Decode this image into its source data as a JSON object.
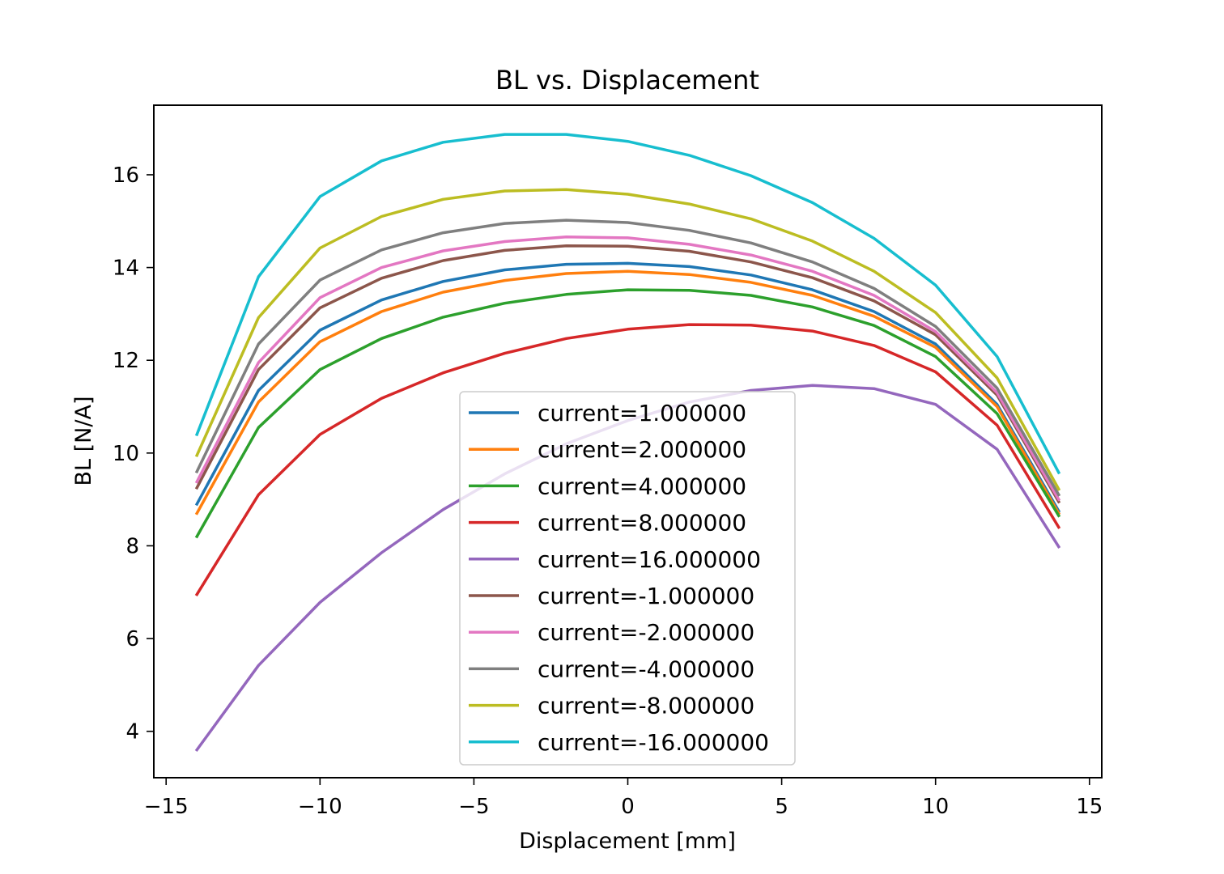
{
  "chart_data": {
    "type": "line",
    "title": "BL vs. Displacement",
    "xlabel": "Displacement [mm]",
    "ylabel": "BL [N/A]",
    "xlim": [
      -15.4,
      15.4
    ],
    "ylim": [
      3.0,
      17.5
    ],
    "xticks": [
      -15,
      -10,
      -5,
      0,
      5,
      10,
      15
    ],
    "xtick_labels": [
      "−15",
      "−10",
      "−5",
      "0",
      "5",
      "10",
      "15"
    ],
    "yticks": [
      4,
      6,
      8,
      10,
      12,
      14,
      16
    ],
    "ytick_labels": [
      "4",
      "6",
      "8",
      "10",
      "12",
      "14",
      "16"
    ],
    "grid": false,
    "legend_position": "lower center",
    "x": [
      -14,
      -12,
      -10,
      -8,
      -6,
      -4,
      -2,
      0,
      2,
      4,
      6,
      8,
      10,
      12,
      14
    ],
    "series": [
      {
        "name": "current=1.000000",
        "color": "#1f77b4",
        "values": [
          8.9,
          11.35,
          12.65,
          13.3,
          13.7,
          13.95,
          14.07,
          14.09,
          14.02,
          13.84,
          13.52,
          13.05,
          12.35,
          11.05,
          8.75
        ]
      },
      {
        "name": "current=2.000000",
        "color": "#ff7f0e",
        "values": [
          8.7,
          11.1,
          12.4,
          13.05,
          13.47,
          13.72,
          13.87,
          13.92,
          13.85,
          13.68,
          13.4,
          12.95,
          12.28,
          11.0,
          8.7
        ]
      },
      {
        "name": "current=4.000000",
        "color": "#2ca02c",
        "values": [
          8.2,
          10.55,
          11.8,
          12.47,
          12.93,
          13.23,
          13.42,
          13.52,
          13.51,
          13.4,
          13.15,
          12.75,
          12.08,
          10.85,
          8.65
        ]
      },
      {
        "name": "current=8.000000",
        "color": "#d62728",
        "values": [
          6.95,
          9.1,
          10.4,
          11.18,
          11.73,
          12.15,
          12.47,
          12.67,
          12.77,
          12.76,
          12.63,
          12.32,
          11.75,
          10.6,
          8.4
        ]
      },
      {
        "name": "current=16.000000",
        "color": "#9467bd",
        "values": [
          3.6,
          5.42,
          6.78,
          7.85,
          8.78,
          9.55,
          10.2,
          10.7,
          11.1,
          11.35,
          11.46,
          11.39,
          11.05,
          10.08,
          7.98
        ]
      },
      {
        "name": "current=-1.000000",
        "color": "#8c564b",
        "values": [
          9.25,
          11.8,
          13.13,
          13.77,
          14.15,
          14.37,
          14.47,
          14.46,
          14.35,
          14.12,
          13.78,
          13.28,
          12.55,
          11.25,
          8.95
        ]
      },
      {
        "name": "current=-2.000000",
        "color": "#e377c2",
        "values": [
          9.38,
          11.95,
          13.35,
          14.0,
          14.36,
          14.56,
          14.66,
          14.64,
          14.5,
          14.27,
          13.92,
          13.4,
          12.62,
          11.3,
          9.0
        ]
      },
      {
        "name": "current=-4.000000",
        "color": "#7f7f7f",
        "values": [
          9.6,
          12.35,
          13.73,
          14.38,
          14.75,
          14.95,
          15.02,
          14.97,
          14.8,
          14.53,
          14.12,
          13.55,
          12.73,
          11.4,
          9.1
        ]
      },
      {
        "name": "current=-8.000000",
        "color": "#bcbd22",
        "values": [
          9.95,
          12.92,
          14.42,
          15.1,
          15.47,
          15.65,
          15.68,
          15.58,
          15.37,
          15.05,
          14.57,
          13.92,
          13.03,
          11.62,
          9.22
        ]
      },
      {
        "name": "current=-16.000000",
        "color": "#17becf",
        "values": [
          10.4,
          13.8,
          15.53,
          16.3,
          16.7,
          16.87,
          16.87,
          16.72,
          16.42,
          15.98,
          15.4,
          14.63,
          13.62,
          12.08,
          9.58
        ]
      }
    ]
  }
}
